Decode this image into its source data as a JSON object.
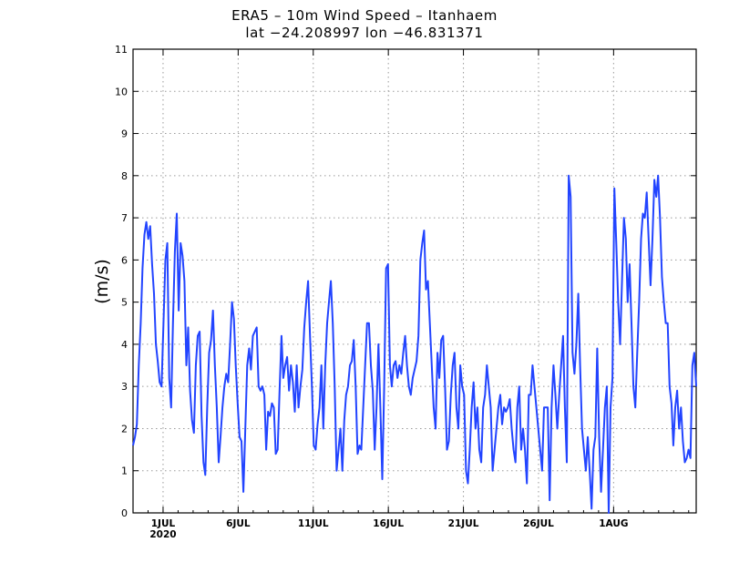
{
  "chart_data": {
    "type": "line",
    "title": "ERA5 – 10m Wind Speed – Itanhaem",
    "subtitle": "lat −24.208997 lon −46.831371",
    "xlabel": "",
    "ylabel": "(m/s)",
    "ylim": [
      0,
      11
    ],
    "xlim_days": [
      0,
      37.5
    ],
    "grid": true,
    "y_ticks": [
      "0",
      "1",
      "2",
      "3",
      "4",
      "5",
      "6",
      "7",
      "8",
      "9",
      "10",
      "11"
    ],
    "x_ticks": [
      {
        "day": 2,
        "label": "1JUL",
        "sublabel": "2020"
      },
      {
        "day": 7,
        "label": "6JUL",
        "sublabel": ""
      },
      {
        "day": 12,
        "label": "11JUL",
        "sublabel": ""
      },
      {
        "day": 17,
        "label": "16JUL",
        "sublabel": ""
      },
      {
        "day": 22,
        "label": "21JUL",
        "sublabel": ""
      },
      {
        "day": 27,
        "label": "26JUL",
        "sublabel": ""
      },
      {
        "day": 32,
        "label": "1AUG",
        "sublabel": ""
      }
    ],
    "series": [
      {
        "name": "10m wind speed",
        "color": "#2244ff",
        "x_step_days": 0.125,
        "values": [
          1.6,
          1.8,
          2.1,
          3.5,
          4.5,
          5.8,
          6.6,
          6.9,
          6.5,
          6.8,
          5.9,
          5.2,
          4.0,
          3.6,
          3.1,
          3.0,
          4.5,
          6.0,
          6.4,
          3.2,
          2.5,
          4.5,
          6.2,
          7.1,
          4.8,
          6.4,
          6.1,
          5.5,
          3.5,
          4.4,
          2.9,
          2.2,
          1.9,
          3.5,
          4.2,
          4.3,
          2.3,
          1.2,
          0.9,
          2.5,
          3.8,
          4.1,
          4.8,
          3.5,
          2.5,
          1.2,
          1.8,
          2.5,
          3.0,
          3.3,
          3.1,
          4.0,
          5.0,
          4.6,
          3.5,
          2.6,
          1.8,
          1.7,
          0.5,
          2.0,
          3.5,
          3.9,
          3.4,
          4.2,
          4.3,
          4.4,
          3.0,
          2.9,
          3.0,
          2.8,
          1.5,
          2.4,
          2.3,
          2.6,
          2.5,
          1.4,
          1.5,
          2.9,
          4.2,
          3.2,
          3.5,
          3.7,
          2.9,
          3.5,
          3.1,
          2.4,
          3.5,
          2.5,
          3.0,
          3.4,
          4.4,
          5.0,
          5.5,
          4.2,
          3.0,
          1.6,
          1.5,
          2.1,
          2.5,
          3.5,
          2.0,
          3.5,
          4.5,
          5.0,
          5.5,
          4.5,
          3.0,
          1.0,
          1.5,
          2.0,
          1.0,
          2.2,
          2.8,
          3.0,
          3.5,
          3.6,
          4.1,
          3.0,
          1.4,
          1.6,
          1.5,
          2.5,
          3.5,
          4.5,
          4.5,
          3.5,
          2.9,
          1.5,
          2.5,
          4.0,
          2.5,
          0.8,
          3.0,
          5.8,
          5.9,
          3.5,
          3.0,
          3.5,
          3.6,
          3.2,
          3.5,
          3.3,
          3.8,
          4.2,
          3.5,
          3.0,
          2.8,
          3.2,
          3.4,
          3.6,
          4.2,
          6.0,
          6.4,
          6.7,
          5.3,
          5.5,
          4.5,
          3.5,
          2.5,
          2.0,
          3.8,
          3.2,
          4.1,
          4.2,
          3.0,
          1.5,
          1.7,
          2.8,
          3.5,
          3.8,
          2.5,
          2.0,
          3.5,
          3.0,
          2.8,
          1.0,
          0.7,
          1.5,
          2.5,
          3.1,
          2.0,
          2.5,
          1.5,
          1.2,
          2.5,
          2.8,
          3.5,
          3.0,
          2.5,
          1.0,
          1.5,
          2.0,
          2.5,
          2.8,
          2.1,
          2.5,
          2.4,
          2.5,
          2.7,
          2.0,
          1.5,
          1.2,
          2.5,
          3.0,
          1.5,
          2.0,
          1.5,
          0.7,
          2.8,
          2.8,
          3.5,
          3.0,
          2.5,
          2.0,
          1.5,
          1.0,
          2.5,
          2.5,
          2.5,
          0.3,
          2.5,
          3.5,
          2.8,
          2.0,
          2.8,
          3.5,
          4.2,
          2.5,
          1.2,
          8.0,
          7.5,
          3.8,
          3.3,
          4.0,
          5.2,
          3.5,
          2.0,
          1.5,
          1.0,
          1.8,
          1.0,
          0.1,
          1.5,
          1.8,
          3.9,
          1.8,
          0.5,
          1.5,
          2.5,
          3.0,
          0.0,
          2.5,
          3.2,
          7.7,
          6.4,
          5.0,
          4.0,
          5.5,
          7.0,
          6.5,
          5.0,
          5.9,
          4.5,
          3.0,
          2.5,
          3.8,
          5.0,
          6.5,
          7.1,
          7.0,
          7.6,
          6.5,
          5.4,
          6.5,
          7.9,
          7.5,
          8.0,
          7.0,
          5.6,
          5.0,
          4.5,
          4.5,
          3.0,
          2.6,
          1.6,
          2.5,
          2.9,
          2.0,
          2.5,
          1.7,
          1.2,
          1.3,
          1.5,
          1.3,
          3.5,
          3.8,
          3.0
        ]
      }
    ]
  }
}
